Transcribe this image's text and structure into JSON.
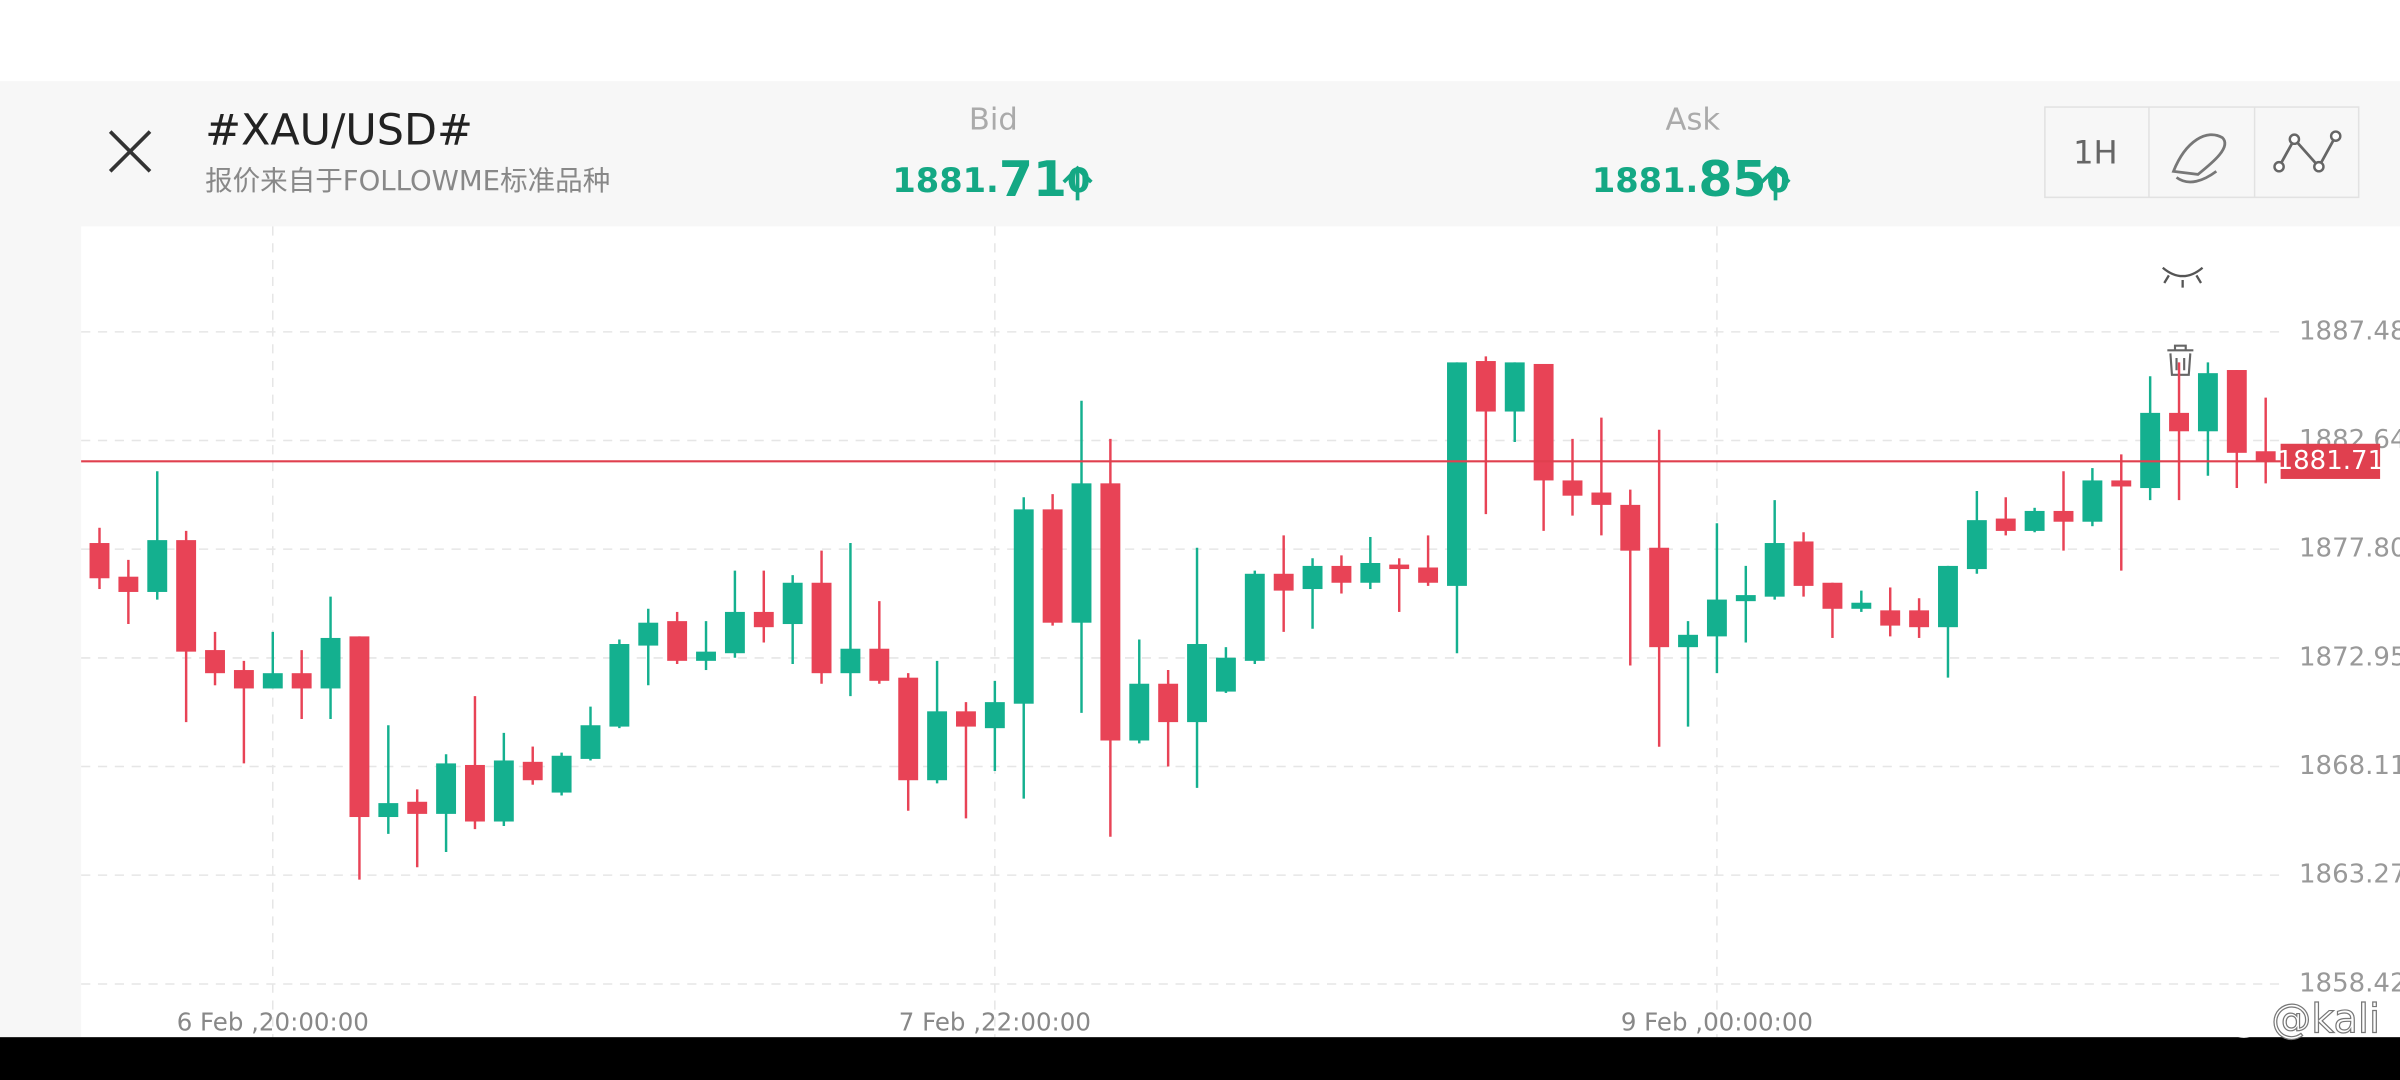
{
  "header": {
    "title": "#XAU/USD#",
    "subtitle": "报价来自于FOLLOWME标准品种",
    "bid": {
      "label": "Bid",
      "prefix": "1881.",
      "main": "71",
      "suffix": "0"
    },
    "ask": {
      "label": "Ask",
      "prefix": "1881.",
      "main": "85",
      "suffix": "0"
    },
    "timeframe": "1H"
  },
  "watermark": "@kali",
  "chart_data": {
    "type": "candlestick",
    "categories": [
      null,
      null,
      null,
      null,
      null,
      null,
      "6 Feb ,20:00:00",
      null,
      null,
      null,
      null,
      null,
      null,
      null,
      null,
      null,
      null,
      null,
      null,
      null,
      null,
      null,
      null,
      null,
      null,
      null,
      null,
      null,
      null,
      null,
      null,
      "7 Feb ,22:00:00",
      null,
      null,
      null,
      null,
      null,
      null,
      null,
      null,
      null,
      null,
      null,
      null,
      null,
      null,
      null,
      null,
      null,
      null,
      null,
      null,
      null,
      null,
      null,
      null,
      "9 Feb ,00:00:00",
      null,
      null,
      null,
      null,
      null,
      null,
      null,
      null,
      null,
      null,
      null,
      null,
      null,
      null,
      null,
      null,
      null,
      null,
      null
    ],
    "open": [
      1878.07,
      1876.57,
      1875.89,
      1878.2,
      1873.3,
      1872.41,
      1871.59,
      1872.27,
      1871.59,
      1873.91,
      1865.86,
      1866.54,
      1866.0,
      1868.18,
      1865.66,
      1868.32,
      1866.95,
      1868.45,
      1869.89,
      1873.5,
      1874.59,
      1872.82,
      1873.16,
      1875.0,
      1874.46,
      1876.3,
      1872.27,
      1873.36,
      1872.07,
      1867.5,
      1870.57,
      1869.82,
      1870.91,
      1879.57,
      1874.52,
      1880.73,
      1869.27,
      1871.8,
      1870.09,
      1871.45,
      1872.82,
      1876.7,
      1876.02,
      1877.05,
      1876.3,
      1877.11,
      1876.98,
      1876.16,
      1886.18,
      1883.93,
      1886.05,
      1880.86,
      1880.32,
      1879.77,
      1877.86,
      1873.43,
      1873.91,
      1875.48,
      1875.68,
      1878.14,
      1876.3,
      1875.14,
      1875.07,
      1875.07,
      1874.32,
      1876.91,
      1879.16,
      1878.61,
      1879.5,
      1879.02,
      1880.86,
      1880.52,
      1883.87,
      1883.05,
      1885.78,
      1882.16
    ],
    "high": [
      1878.75,
      1877.32,
      1881.27,
      1878.61,
      1874.11,
      1872.82,
      1874.11,
      1873.3,
      1875.68,
      1873.91,
      1869.95,
      1867.09,
      1868.66,
      1871.25,
      1869.61,
      1869.0,
      1868.73,
      1870.78,
      1873.77,
      1875.14,
      1875.0,
      1874.59,
      1876.84,
      1876.84,
      1876.64,
      1877.73,
      1878.07,
      1875.48,
      1872.27,
      1872.82,
      1870.98,
      1871.93,
      1880.11,
      1880.25,
      1884.41,
      1882.71,
      1873.77,
      1872.41,
      1877.86,
      1873.43,
      1876.84,
      1878.41,
      1877.39,
      1877.52,
      1878.34,
      1877.39,
      1878.41,
      1886.12,
      1886.39,
      1886.12,
      1886.05,
      1882.71,
      1883.66,
      1880.45,
      1883.12,
      1874.59,
      1878.95,
      1877.05,
      1879.98,
      1878.55,
      1876.3,
      1875.95,
      1876.09,
      1875.61,
      1877.05,
      1880.39,
      1880.11,
      1879.64,
      1881.27,
      1881.41,
      1882.02,
      1885.5,
      1886.12,
      1886.12,
      1885.78,
      1884.55
    ],
    "low": [
      1876.02,
      1874.46,
      1875.55,
      1870.09,
      1871.73,
      1868.25,
      1871.59,
      1870.23,
      1870.23,
      1863.07,
      1865.11,
      1863.62,
      1864.3,
      1865.32,
      1865.46,
      1867.3,
      1866.82,
      1868.38,
      1869.82,
      1871.73,
      1872.68,
      1872.41,
      1872.96,
      1873.64,
      1872.68,
      1871.8,
      1871.25,
      1871.8,
      1866.14,
      1867.36,
      1865.8,
      1867.91,
      1866.68,
      1874.39,
      1870.5,
      1864.98,
      1869.14,
      1868.11,
      1867.16,
      1871.39,
      1872.68,
      1874.11,
      1874.25,
      1875.82,
      1876.02,
      1875.0,
      1876.16,
      1873.16,
      1879.36,
      1882.57,
      1878.61,
      1879.29,
      1878.41,
      1872.61,
      1868.99,
      1869.89,
      1872.27,
      1873.64,
      1875.55,
      1875.68,
      1873.84,
      1875.0,
      1873.91,
      1873.84,
      1872.07,
      1876.7,
      1878.41,
      1878.55,
      1877.73,
      1878.82,
      1876.84,
      1879.98,
      1879.98,
      1881.07,
      1880.52,
      1880.73
    ],
    "close": [
      1876.5,
      1875.89,
      1878.2,
      1873.23,
      1872.27,
      1871.59,
      1872.27,
      1871.59,
      1873.84,
      1865.86,
      1866.48,
      1866.0,
      1868.25,
      1865.66,
      1868.38,
      1867.5,
      1868.59,
      1869.95,
      1873.57,
      1874.52,
      1872.82,
      1873.23,
      1875.0,
      1874.32,
      1876.3,
      1872.27,
      1873.36,
      1871.93,
      1867.5,
      1870.57,
      1869.89,
      1870.98,
      1879.57,
      1874.52,
      1880.73,
      1869.27,
      1871.8,
      1870.09,
      1873.57,
      1872.96,
      1876.7,
      1875.95,
      1877.05,
      1876.3,
      1877.18,
      1876.91,
      1876.3,
      1886.12,
      1883.93,
      1886.12,
      1880.86,
      1880.18,
      1879.77,
      1877.73,
      1873.43,
      1873.98,
      1875.55,
      1875.75,
      1878.07,
      1876.16,
      1875.14,
      1875.41,
      1874.39,
      1874.32,
      1877.05,
      1879.09,
      1878.61,
      1879.5,
      1879.02,
      1880.86,
      1880.59,
      1883.87,
      1883.05,
      1885.64,
      1882.09,
      1881.71
    ],
    "up_color": "#14b08f",
    "down_color": "#e84356",
    "current_price": 1881.71,
    "current_color": "#e0404f",
    "ylim": [
      1856.05,
      1892.18
    ],
    "yticks": [
      1858.42,
      1863.27,
      1868.11,
      1872.95,
      {
        "value": 1877.8,
        "label": "1877.80"
      },
      1882.64,
      1887.48
    ],
    "grid": true
  }
}
